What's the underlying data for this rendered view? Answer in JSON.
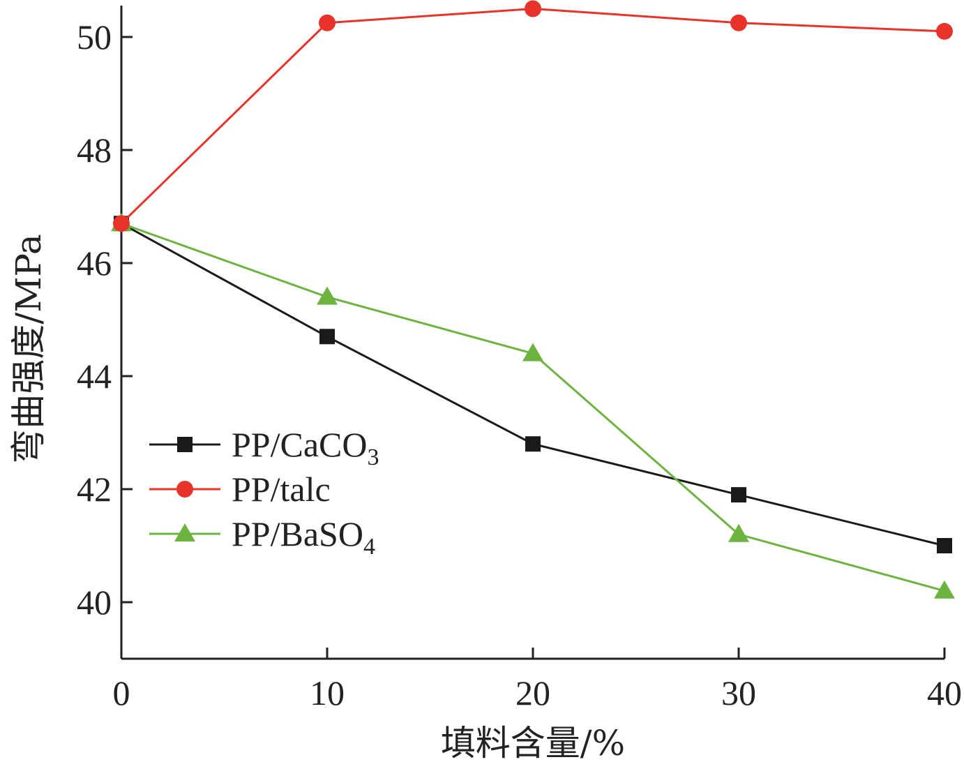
{
  "chart_data": {
    "type": "line",
    "title": "",
    "xlabel": "填料含量/%",
    "ylabel": "弯曲强度/MPa",
    "x": [
      0,
      10,
      20,
      30,
      40
    ],
    "xticks": [
      "0",
      "10",
      "20",
      "30",
      "40"
    ],
    "yticks": [
      "40",
      "42",
      "44",
      "46",
      "48",
      "50"
    ],
    "xlim": [
      0,
      40
    ],
    "ylim": [
      39,
      50.5
    ],
    "grid": false,
    "legend_position": "lower-left",
    "series": [
      {
        "name": "PP/CaCO3",
        "label_main": "PP/CaCO",
        "label_sub": "3",
        "marker": "square",
        "color": "#1a1a1a",
        "values": [
          46.7,
          44.7,
          42.8,
          41.9,
          41.0
        ]
      },
      {
        "name": "PP/talc",
        "label_main": "PP/talc",
        "label_sub": "",
        "marker": "circle",
        "color": "#e8332a",
        "values": [
          46.7,
          50.25,
          50.5,
          50.25,
          50.1
        ]
      },
      {
        "name": "PP/BaSO4",
        "label_main": "PP/BaSO",
        "label_sub": "4",
        "marker": "triangle",
        "color": "#6db33f",
        "values": [
          46.7,
          45.4,
          44.4,
          41.2,
          40.2
        ]
      }
    ]
  }
}
